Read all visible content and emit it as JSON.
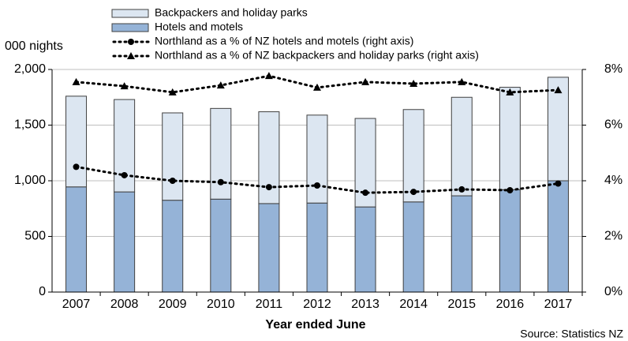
{
  "chart_data": {
    "type": "bar",
    "stacked": true,
    "y_axis_label": "000 nights",
    "x_axis_label": "Year ended June",
    "source": "Source: Statistics NZ",
    "categories": [
      "2007",
      "2008",
      "2009",
      "2010",
      "2011",
      "2012",
      "2013",
      "2014",
      "2015",
      "2016",
      "2017"
    ],
    "series": [
      {
        "name": "Hotels and motels",
        "type": "bar",
        "color": "#95b3d7",
        "values": [
          945,
          900,
          825,
          835,
          795,
          800,
          765,
          810,
          865,
          920,
          1000
        ]
      },
      {
        "name": "Backpackers and holiday parks",
        "type": "bar",
        "color": "#dce6f1",
        "values": [
          815,
          830,
          785,
          815,
          825,
          790,
          795,
          830,
          885,
          920,
          930
        ]
      },
      {
        "name": "Northland as a % of NZ hotels and motels (right axis)",
        "type": "line",
        "axis": "y2",
        "marker": "circle",
        "color": "#000000",
        "values": [
          4.5,
          4.2,
          4.0,
          3.95,
          3.77,
          3.83,
          3.57,
          3.6,
          3.69,
          3.66,
          3.9
        ]
      },
      {
        "name": "Northland as a % of NZ backpackers and holiday parks (right axis)",
        "type": "line",
        "axis": "y2",
        "marker": "triangle",
        "color": "#000000",
        "values": [
          7.55,
          7.4,
          7.18,
          7.43,
          7.77,
          7.35,
          7.55,
          7.49,
          7.55,
          7.18,
          7.26
        ]
      }
    ],
    "legend_order": [
      1,
      0,
      2,
      3
    ],
    "ylim": [
      0,
      2000
    ],
    "yticks": [
      0,
      500,
      {
        "value": 1000,
        "label": "1,000"
      },
      {
        "value": 1500,
        "label": "1,500"
      },
      {
        "value": 2000,
        "label": "2,000"
      }
    ],
    "y2lim": [
      0,
      8
    ],
    "y2ticks": [
      {
        "value": 0,
        "label": "0%"
      },
      {
        "value": 2,
        "label": "2%"
      },
      {
        "value": 4,
        "label": "4%"
      },
      {
        "value": 6,
        "label": "6%"
      },
      {
        "value": 8,
        "label": "8%"
      }
    ],
    "grid": true
  }
}
